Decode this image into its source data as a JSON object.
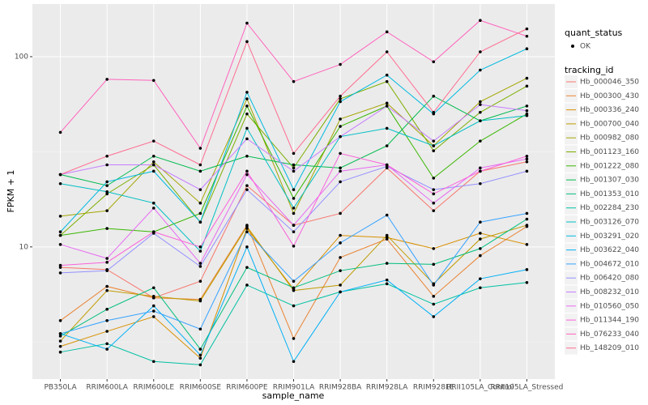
{
  "chart_data": {
    "type": "line",
    "y_label": "FPKM + 1",
    "x_label": "sample_name",
    "log_y": true,
    "grid": true,
    "categories": [
      "PB350LA",
      "RRIM600LA",
      "RRIM600LE",
      "RRIM600SE",
      "RRIM600PE",
      "RRIM901LA",
      "RRIM928BA",
      "RRIM928LA",
      "RRIM928LE",
      "RRII105LA_Control",
      "RRII105LA_Stressed"
    ],
    "ylim": [
      2.02,
      189
    ],
    "yticks": [
      10,
      100
    ],
    "shape_legend": {
      "title": "quant_status",
      "entries": [
        "OK"
      ]
    },
    "legend_title": "tracking_id",
    "series": [
      {
        "name": "Hb_000046_350",
        "color": "#F8766D",
        "values": [
          7.8,
          7.6,
          5.4,
          6.6,
          21,
          13,
          15,
          26,
          15.5,
          25,
          28
        ]
      },
      {
        "name": "Hb_000300_430",
        "color": "#EA8331",
        "values": [
          4.1,
          6.2,
          5.4,
          5.3,
          13,
          3.3,
          8.8,
          11,
          5.5,
          9,
          12.8
        ]
      },
      {
        "name": "Hb_000336_240",
        "color": "#D89000",
        "values": [
          3.0,
          3.6,
          4.3,
          2.6,
          12.5,
          6,
          11.5,
          11.2,
          9.8,
          11.8,
          10.3
        ]
      },
      {
        "name": "Hb_000700_040",
        "color": "#C09B00",
        "values": [
          3.2,
          5.9,
          5.5,
          5.2,
          12.8,
          5.9,
          6.3,
          11.5,
          6.4,
          11,
          13
        ]
      },
      {
        "name": "Hb_000982_080",
        "color": "#A3A500",
        "values": [
          14.5,
          15.5,
          28,
          17,
          60,
          15,
          47,
          57,
          34,
          58,
          77
        ]
      },
      {
        "name": "Hb_001123_160",
        "color": "#7CAE00",
        "values": [
          11.5,
          19,
          27,
          13.5,
          50,
          26,
          60,
          74,
          32,
          51,
          70
        ]
      },
      {
        "name": "Hb_001222_080",
        "color": "#39B600",
        "values": [
          11.5,
          12.5,
          12,
          15,
          55,
          18,
          43,
          55,
          23,
          36,
          50
        ]
      },
      {
        "name": "Hb_001307_030",
        "color": "#00BB4E",
        "values": [
          24,
          21,
          30,
          25,
          30,
          27,
          26,
          34,
          62,
          46,
          55
        ]
      },
      {
        "name": "Hb_001353_010",
        "color": "#00BF7D",
        "values": [
          3.4,
          4.7,
          6.1,
          2.9,
          7.8,
          6.1,
          7.5,
          8.2,
          8.1,
          9.8,
          14
        ]
      },
      {
        "name": "Hb_002284_230",
        "color": "#00C1A3",
        "values": [
          2.8,
          3.1,
          2.5,
          2.4,
          6.3,
          4.9,
          5.8,
          6.4,
          5,
          6.1,
          6.5
        ]
      },
      {
        "name": "Hb_003126_070",
        "color": "#00BFC4",
        "values": [
          21.5,
          19.5,
          17,
          9.5,
          42,
          16,
          38,
          42,
          34,
          46,
          49
        ]
      },
      {
        "name": "Hb_003291_020",
        "color": "#00BAE0",
        "values": [
          12,
          22,
          25,
          13.5,
          65,
          20,
          58,
          80,
          50,
          85,
          110
        ]
      },
      {
        "name": "Hb_003622_040",
        "color": "#00B0F6",
        "values": [
          3.5,
          2.9,
          4.9,
          2.7,
          10,
          2.5,
          5.8,
          6.7,
          4.3,
          6.8,
          7.6
        ]
      },
      {
        "name": "Hb_004672_010",
        "color": "#35A2FF",
        "values": [
          3.5,
          4.1,
          4.6,
          3.7,
          12,
          6.6,
          10.5,
          14.7,
          6.3,
          13.5,
          15
        ]
      },
      {
        "name": "Hb_006420_080",
        "color": "#9590FF",
        "values": [
          7.3,
          7.5,
          11.8,
          7.9,
          20,
          12,
          22,
          26.5,
          20,
          21.5,
          25
        ]
      },
      {
        "name": "Hb_008232_010",
        "color": "#C77CFF",
        "values": [
          24,
          27,
          27,
          20,
          37,
          25,
          38,
          55,
          36,
          56,
          52
        ]
      },
      {
        "name": "Hb_010560_050",
        "color": "#E76BF3",
        "values": [
          10.3,
          8.7,
          16,
          8.2,
          24,
          13,
          25,
          27,
          17,
          26,
          29
        ]
      },
      {
        "name": "Hb_011344_190",
        "color": "#FA62DB",
        "values": [
          8,
          8.3,
          12,
          10,
          25,
          10.1,
          31,
          27,
          19,
          25,
          30
        ]
      },
      {
        "name": "Hb_076233_040",
        "color": "#FF62BC",
        "values": [
          40,
          76,
          75,
          33,
          150,
          74,
          91,
          135,
          94,
          155,
          128
        ]
      },
      {
        "name": "Hb_148209_010",
        "color": "#FF6C91",
        "values": [
          24,
          30,
          36,
          27,
          120,
          31,
          62,
          106,
          51,
          106,
          140
        ]
      }
    ]
  }
}
